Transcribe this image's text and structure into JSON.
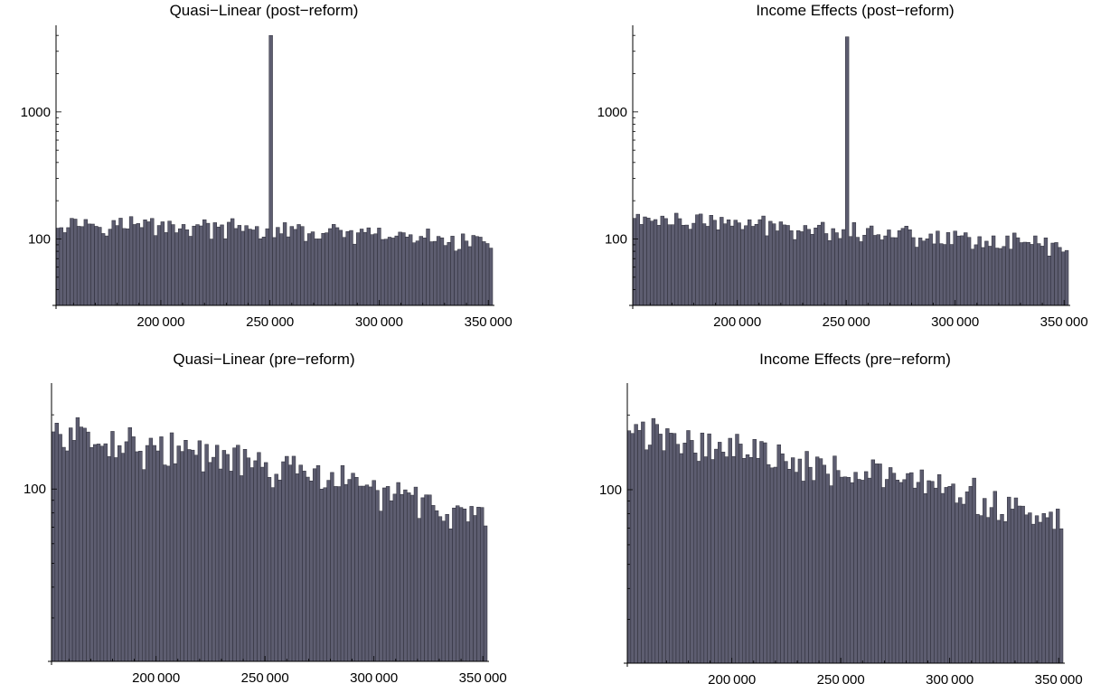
{
  "colors": {
    "bar_fill": "#5d5d70",
    "bar_stroke": "#2b2b36",
    "axis": "#000000",
    "background": "#ffffff"
  },
  "chart_data": [
    {
      "type": "bar",
      "title": "Quasi−Linear (post−reform)",
      "xlabel": "",
      "ylabel": "",
      "y_scale": "log",
      "xlim": [
        152000,
        352000
      ],
      "ylim": [
        30,
        4500
      ],
      "bin_width": 1600,
      "x_ticks": [
        200000,
        250000,
        300000,
        350000
      ],
      "x_tick_labels": [
        "200 000",
        "250 000",
        "300 000",
        "350 000"
      ],
      "y_ticks": [
        100,
        1000
      ],
      "y_tick_labels": [
        "100",
        "1000"
      ],
      "spike": {
        "x": 250000,
        "count": 4000
      },
      "count_start": 138,
      "count_end": 94,
      "grid": false
    },
    {
      "type": "bar",
      "title": "Income Effects (post−reform)",
      "xlabel": "",
      "ylabel": "",
      "y_scale": "log",
      "xlim": [
        152000,
        352000
      ],
      "ylim": [
        30,
        4500
      ],
      "bin_width": 1600,
      "x_ticks": [
        200000,
        250000,
        300000,
        350000
      ],
      "x_tick_labels": [
        "200 000",
        "250 000",
        "300 000",
        "350 000"
      ],
      "y_ticks": [
        100,
        1000
      ],
      "y_tick_labels": [
        "100",
        "1000"
      ],
      "spike": {
        "x": 250000,
        "count": 3900
      },
      "count_start": 145,
      "count_end": 88,
      "grid": false
    },
    {
      "type": "bar",
      "title": "Quasi−Linear (pre−reform)",
      "xlabel": "",
      "ylabel": "",
      "y_scale": "log",
      "xlim": [
        152000,
        352000
      ],
      "ylim": [
        20,
        260
      ],
      "bin_width": 1600,
      "x_ticks": [
        200000,
        250000,
        300000,
        350000
      ],
      "x_tick_labels": [
        "200 000",
        "250 000",
        "300 000",
        "350 000"
      ],
      "y_ticks": [
        100
      ],
      "y_tick_labels": [
        "100"
      ],
      "spike": null,
      "count_start": 170,
      "count_end": 75,
      "grid": false
    },
    {
      "type": "bar",
      "title": "Income Effects (pre−reform)",
      "xlabel": "",
      "ylabel": "",
      "y_scale": "log",
      "xlim": [
        152000,
        352000
      ],
      "ylim": [
        20,
        260
      ],
      "bin_width": 1600,
      "x_ticks": [
        200000,
        250000,
        300000,
        350000
      ],
      "x_tick_labels": [
        "200 000",
        "250 000",
        "300 000",
        "350 000"
      ],
      "y_ticks": [
        100
      ],
      "y_tick_labels": [
        "100"
      ],
      "spike": null,
      "count_start": 172,
      "count_end": 72,
      "grid": false
    }
  ]
}
